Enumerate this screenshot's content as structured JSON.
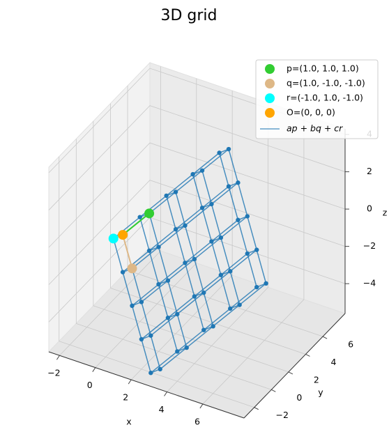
{
  "chart_data": {
    "type": "scatter3d",
    "title": "3D grid",
    "xlabel": "x",
    "ylabel": "y",
    "zlabel": "z",
    "xlim": [
      -2.6,
      8.3
    ],
    "ylim": [
      -3.2,
      8.6
    ],
    "zlim": [
      -5.6,
      4.3
    ],
    "xticks": [
      {
        "value": -2,
        "label": "−2"
      },
      0,
      2,
      4,
      6
    ],
    "yticks": [
      {
        "value": -2,
        "label": "−2"
      },
      0,
      2,
      4,
      6
    ],
    "zticks": [
      {
        "value": -4,
        "label": "−4"
      },
      {
        "value": -2,
        "label": "−2"
      },
      0,
      2,
      4
    ],
    "grid": true,
    "legend": "upper right",
    "series": [
      {
        "name": "p=(1.0, 1.0, 1.0)",
        "color": "#32cd32",
        "point": [
          1,
          1,
          1
        ]
      },
      {
        "name": "q=(1.0, -1.0, -1.0)",
        "color": "#deb887",
        "point": [
          1,
          -1,
          -1
        ]
      },
      {
        "name": "r=(-1.0, 1.0, -1.0)",
        "color": "#00ffff",
        "point": [
          -1,
          1,
          -1
        ]
      },
      {
        "name": "O=(0, 0, 0)",
        "color": "#ffa500",
        "point": [
          0,
          0,
          0
        ]
      }
    ],
    "lattice": {
      "name": "ap + bq + cr",
      "color": "#1f77b4",
      "a": [
        0,
        1,
        2,
        3,
        4
      ],
      "b": [
        0,
        1,
        2,
        3,
        4
      ],
      "c": [
        0,
        1
      ]
    }
  }
}
